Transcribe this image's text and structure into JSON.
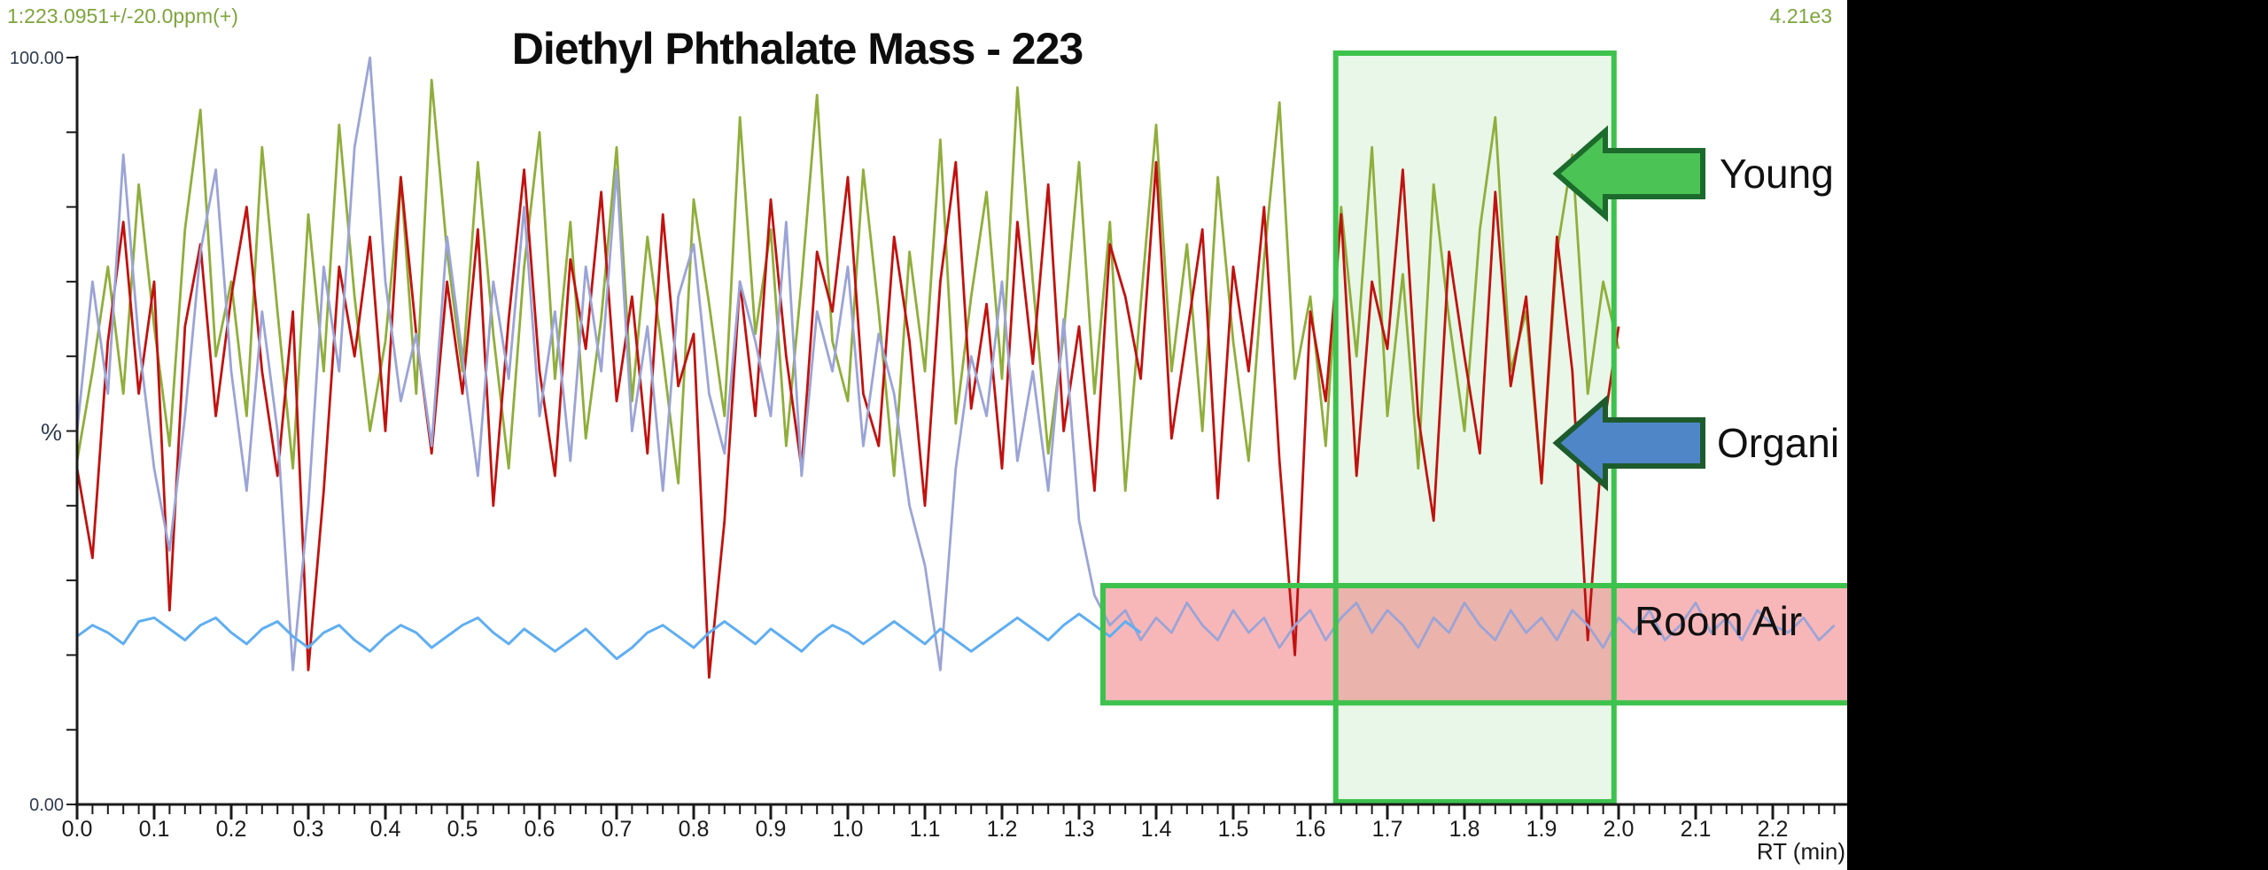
{
  "header": {
    "top_left_label": "1:223.0951+/-20.0ppm(+)",
    "top_right_label": "4.21e3",
    "label_color": "#7EA53C"
  },
  "chart_data": {
    "type": "line",
    "title": "Diethyl Phthalate Mass - 223",
    "xlabel": "RT (min)",
    "ylabel": "%",
    "x_range": [
      0,
      2.29
    ],
    "y_range": [
      0,
      100
    ],
    "grid": false,
    "legend": "none",
    "y_axis_labels": {
      "top": "100.00",
      "bottom": "0.00"
    },
    "x_ticks": [
      0.0,
      0.1,
      0.2,
      0.3,
      0.4,
      0.5,
      0.6,
      0.7,
      0.8,
      0.9,
      1.0,
      1.1,
      1.2,
      1.3,
      1.4,
      1.5,
      1.6,
      1.7,
      1.8,
      1.9,
      2.0,
      2.1,
      2.2
    ],
    "x_minor_tick_step": 0.02,
    "y_tick_step": 10,
    "series": [
      {
        "name": "sample-olive",
        "color": "#8FAE3B",
        "width": 2.8,
        "x_start": 0,
        "x_step": 0.02,
        "values": [
          46,
          58,
          72,
          55,
          83,
          64,
          48,
          77,
          93,
          60,
          70,
          52,
          88,
          66,
          45,
          79,
          58,
          91,
          68,
          50,
          62,
          84,
          55,
          97,
          74,
          58,
          86,
          63,
          45,
          72,
          90,
          57,
          78,
          49,
          65,
          88,
          54,
          76,
          60,
          43,
          81,
          67,
          52,
          92,
          63,
          77,
          48,
          70,
          95,
          62,
          54,
          85,
          66,
          44,
          74,
          58,
          89,
          51,
          68,
          82,
          57,
          96,
          70,
          47,
          63,
          86,
          55,
          78,
          42,
          67,
          91,
          58,
          75,
          50,
          84,
          62,
          46,
          73,
          94,
          57,
          68,
          48,
          80,
          60,
          88,
          52,
          71,
          45,
          83,
          65,
          50,
          77,
          92,
          58,
          66,
          43,
          74,
          87,
          55,
          70,
          61
        ]
      },
      {
        "name": "sample-red",
        "color": "#C1120F",
        "width": 2.8,
        "x_start": 0,
        "x_step": 0.02,
        "values": [
          45,
          33,
          62,
          78,
          55,
          70,
          26,
          64,
          75,
          52,
          68,
          80,
          58,
          44,
          66,
          18,
          42,
          72,
          60,
          76,
          50,
          84,
          63,
          47,
          70,
          55,
          77,
          40,
          65,
          85,
          58,
          44,
          73,
          61,
          82,
          54,
          68,
          47,
          79,
          56,
          63,
          17,
          38,
          70,
          52,
          81,
          60,
          45,
          74,
          66,
          84,
          55,
          48,
          76,
          62,
          40,
          70,
          86,
          53,
          67,
          45,
          78,
          59,
          83,
          50,
          64,
          42,
          75,
          68,
          57,
          86,
          49,
          63,
          77,
          41,
          72,
          58,
          80,
          46,
          20,
          66,
          54,
          79,
          44,
          70,
          61,
          85,
          52,
          38,
          74,
          60,
          47,
          82,
          56,
          68,
          43,
          76,
          58,
          22,
          50,
          64
        ]
      },
      {
        "name": "sample-periwinkle",
        "color": "#9BA4D6",
        "width": 2.8,
        "x_start": 0,
        "x_step": 0.02,
        "values": [
          50,
          70,
          55,
          87,
          62,
          45,
          34,
          52,
          74,
          85,
          58,
          42,
          66,
          50,
          18,
          40,
          72,
          58,
          88,
          100,
          70,
          54,
          63,
          48,
          76,
          60,
          44,
          70,
          57,
          80,
          52,
          66,
          46,
          72,
          58,
          85,
          50,
          64,
          42,
          68,
          75,
          55,
          47,
          70,
          62,
          52,
          78,
          44,
          66,
          58,
          72,
          48,
          63,
          55,
          40,
          32,
          18,
          45,
          60,
          52,
          70,
          46,
          58,
          42,
          65,
          38,
          28,
          24,
          26,
          22,
          25,
          23,
          27,
          24,
          22,
          26,
          23,
          25,
          21,
          24,
          26,
          22,
          25,
          27,
          23,
          26,
          24,
          21,
          25,
          23,
          27,
          24,
          22,
          26,
          23,
          25,
          22,
          26,
          24,
          21,
          25,
          23,
          26,
          22,
          24,
          27,
          23,
          25,
          22,
          26,
          24,
          23,
          25,
          22,
          24
        ]
      },
      {
        "name": "room-air-blue",
        "color": "#5FAEF2",
        "width": 3,
        "x_start": 0,
        "x_step": 0.02,
        "values": [
          22.5,
          24,
          23,
          21.5,
          24.5,
          25,
          23.5,
          22,
          24,
          25,
          23,
          21.5,
          23.5,
          24.5,
          22.5,
          21,
          23,
          24,
          22,
          20.5,
          22.5,
          24,
          23,
          21,
          22.5,
          24,
          25,
          23,
          21.5,
          23.5,
          22,
          20.5,
          22,
          23.5,
          21.5,
          19.5,
          21,
          23,
          24,
          22.5,
          21,
          23,
          24.5,
          23,
          21.5,
          23.5,
          22,
          20.5,
          22.5,
          24,
          23,
          21.5,
          23,
          24.5,
          23,
          21.5,
          23.5,
          22,
          20.5,
          22,
          23.5,
          25,
          23.5,
          22,
          24,
          25.5,
          24,
          22.5,
          24.5,
          23
        ]
      }
    ],
    "annotations": {
      "green_region": {
        "x_start": 1.633,
        "x_end": 1.994,
        "full_height": true,
        "fill": "rgba(76,195,80,0.13)",
        "border": "#3DC24D"
      },
      "pink_region": {
        "x_start": 1.331,
        "x_end": 2.3,
        "y_start": 13.6,
        "y_end": 29.3,
        "fill": "rgba(238,96,100,0.45)",
        "border": "#3DC24D"
      },
      "arrow_young": {
        "label": "Young",
        "fill": "#4CC355",
        "outline": "#1C6B2D",
        "tip_x": 1.92,
        "tip_y": 84.5,
        "direction": "left"
      },
      "arrow_organic": {
        "label": "Organi",
        "fill": "#4E86C8",
        "outline": "#1E5B2C",
        "tip_x": 1.92,
        "tip_y": 48.4,
        "direction": "left"
      },
      "room_air_label": {
        "label": "Room Air"
      }
    }
  }
}
